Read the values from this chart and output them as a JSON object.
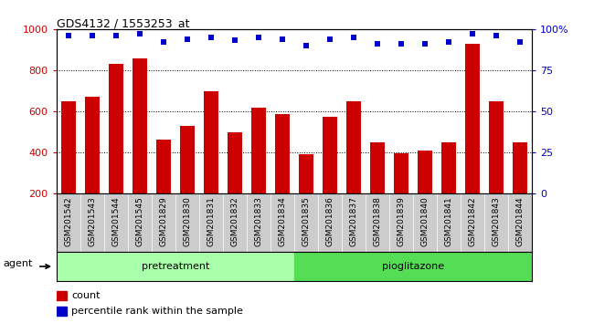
{
  "title": "GDS4132 / 1553253_at",
  "categories": [
    "GSM201542",
    "GSM201543",
    "GSM201544",
    "GSM201545",
    "GSM201829",
    "GSM201830",
    "GSM201831",
    "GSM201832",
    "GSM201833",
    "GSM201834",
    "GSM201835",
    "GSM201836",
    "GSM201837",
    "GSM201838",
    "GSM201839",
    "GSM201840",
    "GSM201841",
    "GSM201842",
    "GSM201843",
    "GSM201844"
  ],
  "bar_values": [
    648,
    672,
    830,
    858,
    465,
    528,
    700,
    498,
    618,
    588,
    393,
    573,
    650,
    450,
    398,
    408,
    450,
    928,
    650,
    450
  ],
  "percentile_values": [
    96,
    96,
    96,
    97,
    92,
    94,
    95,
    93,
    95,
    94,
    90,
    94,
    95,
    91,
    91,
    91,
    92,
    97,
    96,
    92
  ],
  "bar_color": "#cc0000",
  "percentile_color": "#0000cc",
  "ylim_left": [
    200,
    1000
  ],
  "ylim_right": [
    0,
    100
  ],
  "yticks_left": [
    200,
    400,
    600,
    800,
    1000
  ],
  "yticks_right": [
    0,
    25,
    50,
    75,
    100
  ],
  "pretreatment_count": 10,
  "pioglitazone_count": 10,
  "pretreatment_color": "#aaffaa",
  "pioglitazone_color": "#55dd55",
  "xticklabel_bg": "#cccccc",
  "agent_label": "agent",
  "pretreatment_label": "pretreatment",
  "pioglitazone_label": "pioglitazone",
  "legend_count_label": "count",
  "legend_pct_label": "percentile rank within the sample",
  "plot_bg": "#ffffff"
}
